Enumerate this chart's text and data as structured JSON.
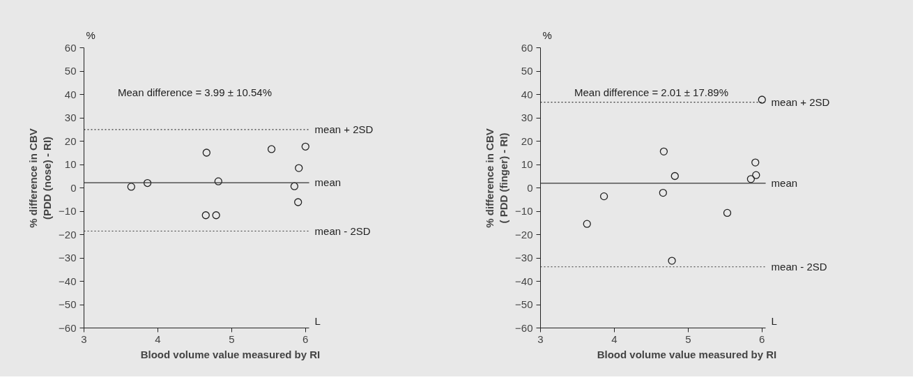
{
  "chart_data": [
    {
      "type": "scatter",
      "xlabel": "Blood volume value measured by RI",
      "ylabel": "% difference in CBV\n(PDD (nose) - RI)",
      "annotations": [
        "Mean difference = 3.99 ± 10.54%",
        "%",
        "L"
      ],
      "xlim": [
        3,
        6.05
      ],
      "xticks": [
        3,
        4,
        5,
        6
      ],
      "ylim": [
        -60,
        60
      ],
      "yticks": [
        -60,
        -50,
        -40,
        -30,
        -20,
        -10,
        0,
        10,
        20,
        30,
        40,
        50,
        60
      ],
      "grid": false,
      "marker": "circle",
      "series": [
        {
          "color": "#222222",
          "x": [
            3.64,
            3.86,
            4.66,
            4.65,
            4.79,
            4.82,
            5.54,
            6.0,
            5.91,
            5.85,
            5.9
          ],
          "values": [
            0.5,
            2.1,
            15.1,
            -11.7,
            -11.7,
            2.8,
            16.6,
            17.7,
            8.5,
            0.7,
            -6.1
          ]
        }
      ],
      "ref_lines": [
        {
          "axis": "y",
          "value": 25,
          "label": "mean + 2SD",
          "line_style": "dotted",
          "color": "#333333"
        },
        {
          "axis": "y",
          "value": 2.2,
          "label": "mean",
          "line_style": "solid",
          "color": "#333333"
        },
        {
          "axis": "y",
          "value": -18.5,
          "label": "mean - 2SD",
          "line_style": "dotted",
          "color": "#333333"
        }
      ]
    },
    {
      "type": "scatter",
      "xlabel": "Blood volume value measured by RI",
      "ylabel": "% difference in CBV\n( PDD (finger) - RI)",
      "annotations": [
        "Mean difference = 2.01 ± 17.89%",
        "%",
        "L"
      ],
      "xlim": [
        3,
        6.05
      ],
      "xticks": [
        3,
        4,
        5,
        6
      ],
      "ylim": [
        -60,
        60
      ],
      "yticks": [
        -60,
        -50,
        -40,
        -30,
        -20,
        -10,
        0,
        10,
        20,
        30,
        40,
        50,
        60
      ],
      "grid": false,
      "marker": "circle",
      "series": [
        {
          "color": "#222222",
          "x": [
            3.63,
            3.86,
            4.67,
            4.66,
            4.82,
            4.78,
            5.53,
            5.91,
            5.92,
            5.85,
            6.0
          ],
          "values": [
            -15.4,
            -3.6,
            15.6,
            -2.1,
            5.1,
            -31.2,
            -10.7,
            10.9,
            5.5,
            3.8,
            37.8
          ]
        }
      ],
      "ref_lines": [
        {
          "axis": "y",
          "value": 36.7,
          "label": "mean + 2SD",
          "line_style": "dotted",
          "color": "#333333"
        },
        {
          "axis": "y",
          "value": 2.0,
          "label": "mean",
          "line_style": "solid",
          "color": "#333333"
        },
        {
          "axis": "y",
          "value": -33.8,
          "label": "mean - 2SD",
          "line_style": "dotted",
          "color": "#333333"
        }
      ]
    }
  ]
}
